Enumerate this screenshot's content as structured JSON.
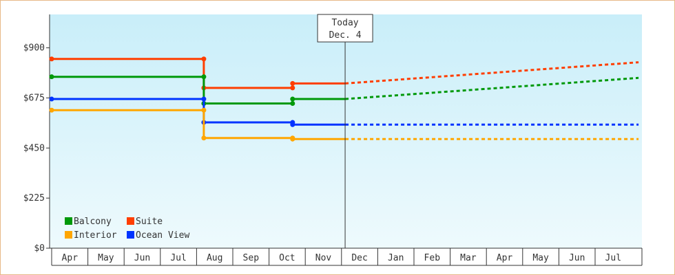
{
  "chart_data": {
    "type": "line",
    "subtype": "step-price-history",
    "x_axis": {
      "months": [
        "Apr",
        "May",
        "Jun",
        "Jul",
        "Aug",
        "Sep",
        "Oct",
        "Nov",
        "Dec",
        "Jan",
        "Feb",
        "Mar",
        "Apr",
        "May",
        "Jun",
        "Jul"
      ],
      "range": [
        0,
        16.2
      ]
    },
    "y_axis": {
      "ticks": [
        0,
        225,
        450,
        675,
        900
      ],
      "tick_labels": [
        "$0",
        "$225",
        "$450",
        "$675",
        "$900"
      ],
      "ylim": [
        0,
        1050
      ]
    },
    "today_marker": {
      "line1": "Today",
      "line2": "Dec. 4",
      "x": 8.1
    },
    "grid": false,
    "legend_position": "bottom-left",
    "series": [
      {
        "name": "Suite",
        "color": "#ff3e00",
        "history": [
          [
            0,
            850
          ],
          [
            4.2,
            850
          ],
          [
            4.2,
            720
          ],
          [
            6.65,
            720
          ],
          [
            6.65,
            740
          ],
          [
            8.1,
            740
          ]
        ],
        "projection": [
          [
            8.1,
            740
          ],
          [
            16.2,
            835
          ]
        ]
      },
      {
        "name": "Balcony",
        "color": "#00990a",
        "history": [
          [
            0,
            770
          ],
          [
            4.2,
            770
          ],
          [
            4.2,
            650
          ],
          [
            6.65,
            650
          ],
          [
            6.65,
            670
          ],
          [
            8.1,
            670
          ]
        ],
        "projection": [
          [
            8.1,
            670
          ],
          [
            16.2,
            765
          ]
        ]
      },
      {
        "name": "Ocean View",
        "color": "#0033ff",
        "history": [
          [
            0,
            670
          ],
          [
            4.2,
            670
          ],
          [
            4.2,
            565
          ],
          [
            6.65,
            565
          ],
          [
            6.65,
            555
          ],
          [
            8.1,
            555
          ]
        ],
        "projection": [
          [
            8.1,
            555
          ],
          [
            16.2,
            555
          ]
        ]
      },
      {
        "name": "Interior",
        "color": "#ffa600",
        "history": [
          [
            0,
            620
          ],
          [
            4.2,
            620
          ],
          [
            4.2,
            495
          ],
          [
            6.65,
            495
          ],
          [
            6.65,
            490
          ],
          [
            8.1,
            490
          ]
        ],
        "projection": [
          [
            8.1,
            490
          ],
          [
            16.2,
            490
          ]
        ]
      }
    ],
    "legend": [
      {
        "name": "Balcony",
        "color": "#00990a"
      },
      {
        "name": "Suite",
        "color": "#ff3e00"
      },
      {
        "name": "Interior",
        "color": "#ffa600"
      },
      {
        "name": "Ocean View",
        "color": "#0033ff"
      }
    ]
  }
}
